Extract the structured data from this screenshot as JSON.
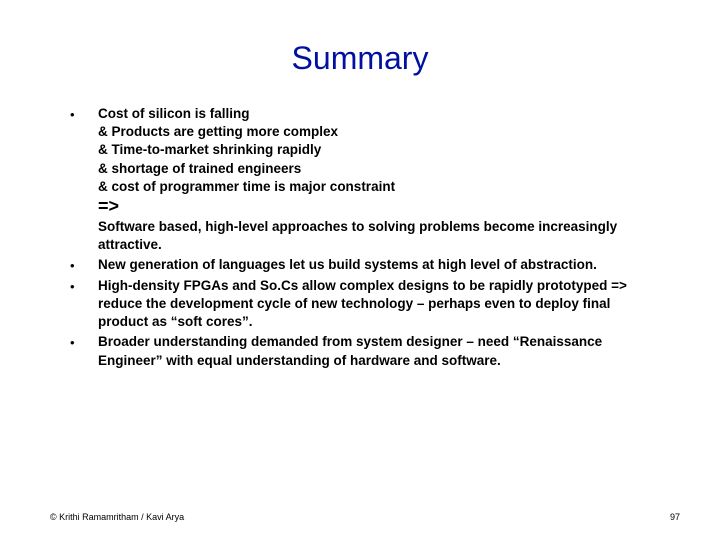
{
  "title": "Summary",
  "bullets": [
    {
      "lines": [
        "Cost of silicon is falling",
        "& Products are getting more complex",
        "& Time-to-market shrinking rapidly",
        "& shortage of trained engineers",
        "& cost  of programmer time is major constraint"
      ],
      "arrow": "=>",
      "tail": "Software based, high-level approaches to solving problems become increasingly attractive."
    },
    {
      "text": "New generation of languages let us build systems at high level of abstraction."
    },
    {
      "text": "High-density FPGAs and So.Cs  allow complex designs to be rapidly prototyped => reduce the development cycle of new technology – perhaps even to deploy final product as “soft cores”."
    },
    {
      "text": "Broader understanding demanded from system designer –  need “Renaissance Engineer” with equal understanding of hardware and software."
    }
  ],
  "footer": {
    "copyright": "© Krithi Ramamritham / Kavi Arya",
    "page": "97"
  },
  "colors": {
    "title": "#0010a0",
    "text": "#000000",
    "background": "#ffffff"
  }
}
